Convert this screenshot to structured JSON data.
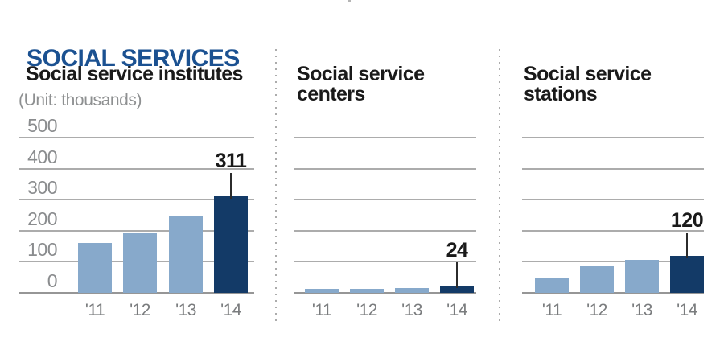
{
  "page_title": "SOCIAL SERVICES",
  "colors": {
    "title_blue": "#1B5191",
    "ink": "#1A1A1A",
    "bar_light": "#87A9CB",
    "bar_dark": "#133A67",
    "gridline_gray": "#ACACAC",
    "baseline_gray": "#969696",
    "axis_label_gray": "#8A8C8E",
    "xtick_gray": "#7A7C7E",
    "unit_gray": "#8E9091"
  },
  "chart_data": [
    {
      "type": "bar",
      "title": "Social service institutes",
      "title_lines": [
        "Social service institutes"
      ],
      "unit_label": "(Unit: thousands)",
      "categories": [
        "'11",
        "'12",
        "'13",
        "'14"
      ],
      "values": [
        160,
        195,
        250,
        311
      ],
      "highlight_index": 3,
      "annotation": {
        "index": 3,
        "text": "311"
      },
      "ylim": [
        0,
        500
      ],
      "y_ticks": [
        500,
        400,
        300,
        200,
        100,
        0
      ],
      "show_y_labels": true,
      "grid": true,
      "legend": "none"
    },
    {
      "type": "bar",
      "title": "Social service centers",
      "title_lines": [
        "Social service",
        "centers"
      ],
      "unit_label": "",
      "categories": [
        "'11",
        "'12",
        "'13",
        "'14"
      ],
      "values": [
        12,
        13,
        16,
        24
      ],
      "highlight_index": 3,
      "annotation": {
        "index": 3,
        "text": "24"
      },
      "ylim": [
        0,
        500
      ],
      "y_ticks": [
        500,
        400,
        300,
        200,
        100,
        0
      ],
      "show_y_labels": false,
      "grid": true,
      "legend": "none"
    },
    {
      "type": "bar",
      "title": "Social service stations",
      "title_lines": [
        "Social service",
        "stations"
      ],
      "unit_label": "",
      "categories": [
        "'11",
        "'12",
        "'13",
        "'14"
      ],
      "values": [
        50,
        85,
        105,
        120
      ],
      "highlight_index": 3,
      "annotation": {
        "index": 3,
        "text": "120"
      },
      "ylim": [
        0,
        500
      ],
      "y_ticks": [
        500,
        400,
        300,
        200,
        100,
        0
      ],
      "show_y_labels": false,
      "grid": true,
      "legend": "none"
    }
  ]
}
